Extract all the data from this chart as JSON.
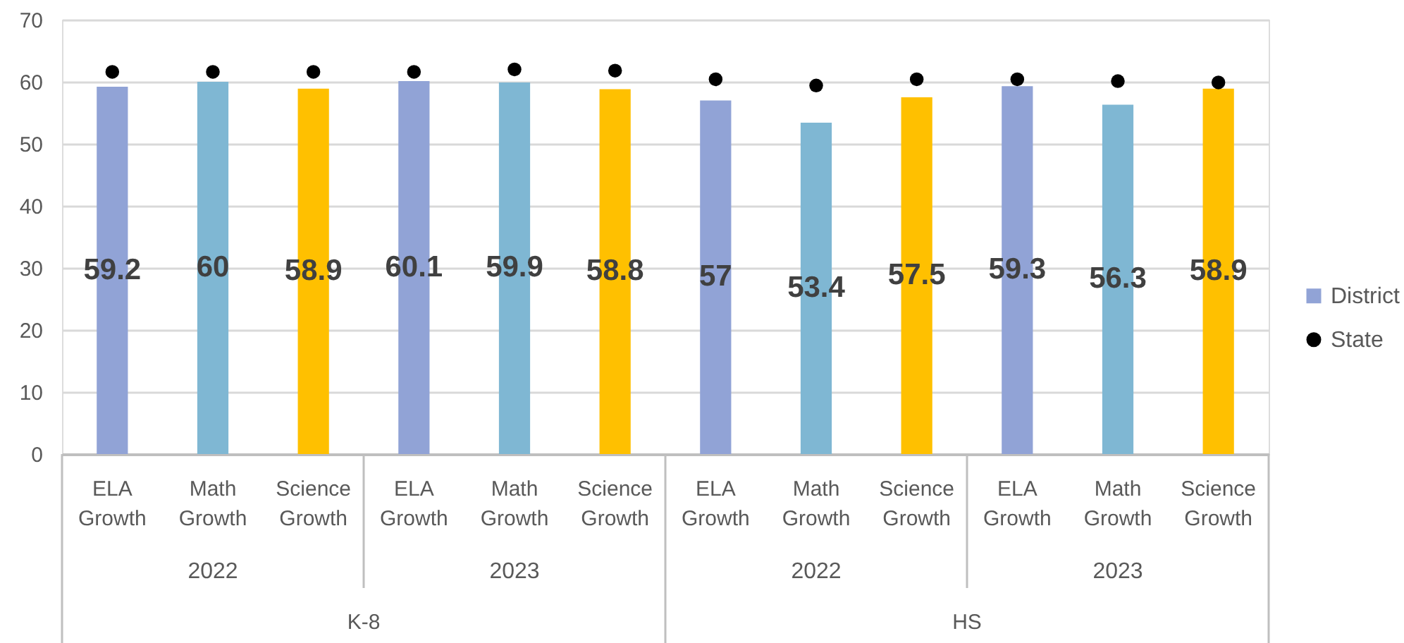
{
  "chart_data": {
    "type": "bar",
    "categories": [
      "ELA Growth",
      "Math Growth",
      "Science Growth",
      "ELA Growth",
      "Math Growth",
      "Science Growth",
      "ELA Growth",
      "Math Growth",
      "Science Growth",
      "ELA Growth",
      "Math Growth",
      "Science Growth"
    ],
    "series": [
      {
        "name": "District",
        "color": "#91a3d6",
        "colors": [
          "#91a3d6",
          "#7fb7d3",
          "#ffc000",
          "#91a3d6",
          "#7fb7d3",
          "#ffc000",
          "#91a3d6",
          "#7fb7d3",
          "#ffc000",
          "#91a3d6",
          "#7fb7d3",
          "#ffc000"
        ],
        "values": [
          59.2,
          60,
          58.9,
          60.1,
          59.9,
          58.8,
          57,
          53.4,
          57.5,
          59.3,
          56.3,
          58.9
        ],
        "value_labels": [
          "59.2",
          "60",
          "58.9",
          "60.1",
          "59.9",
          "58.8",
          "57",
          "53.4",
          "57.5",
          "59.3",
          "56.3",
          "58.9"
        ]
      },
      {
        "name": "State",
        "type": "scatter",
        "color": "#000000",
        "values": [
          61.6,
          61.6,
          61.6,
          61.6,
          62.0,
          61.8,
          60.4,
          59.4,
          60.4,
          60.4,
          60.1,
          59.9
        ]
      }
    ],
    "ylim": [
      0,
      70
    ],
    "yticks": [
      0,
      10,
      20,
      30,
      40,
      50,
      60,
      70
    ],
    "grid": "y",
    "legend": "right",
    "marker": "circle",
    "annotations": [
      "2022",
      "2023",
      "2022",
      "2023",
      "K-8",
      "HS"
    ]
  }
}
